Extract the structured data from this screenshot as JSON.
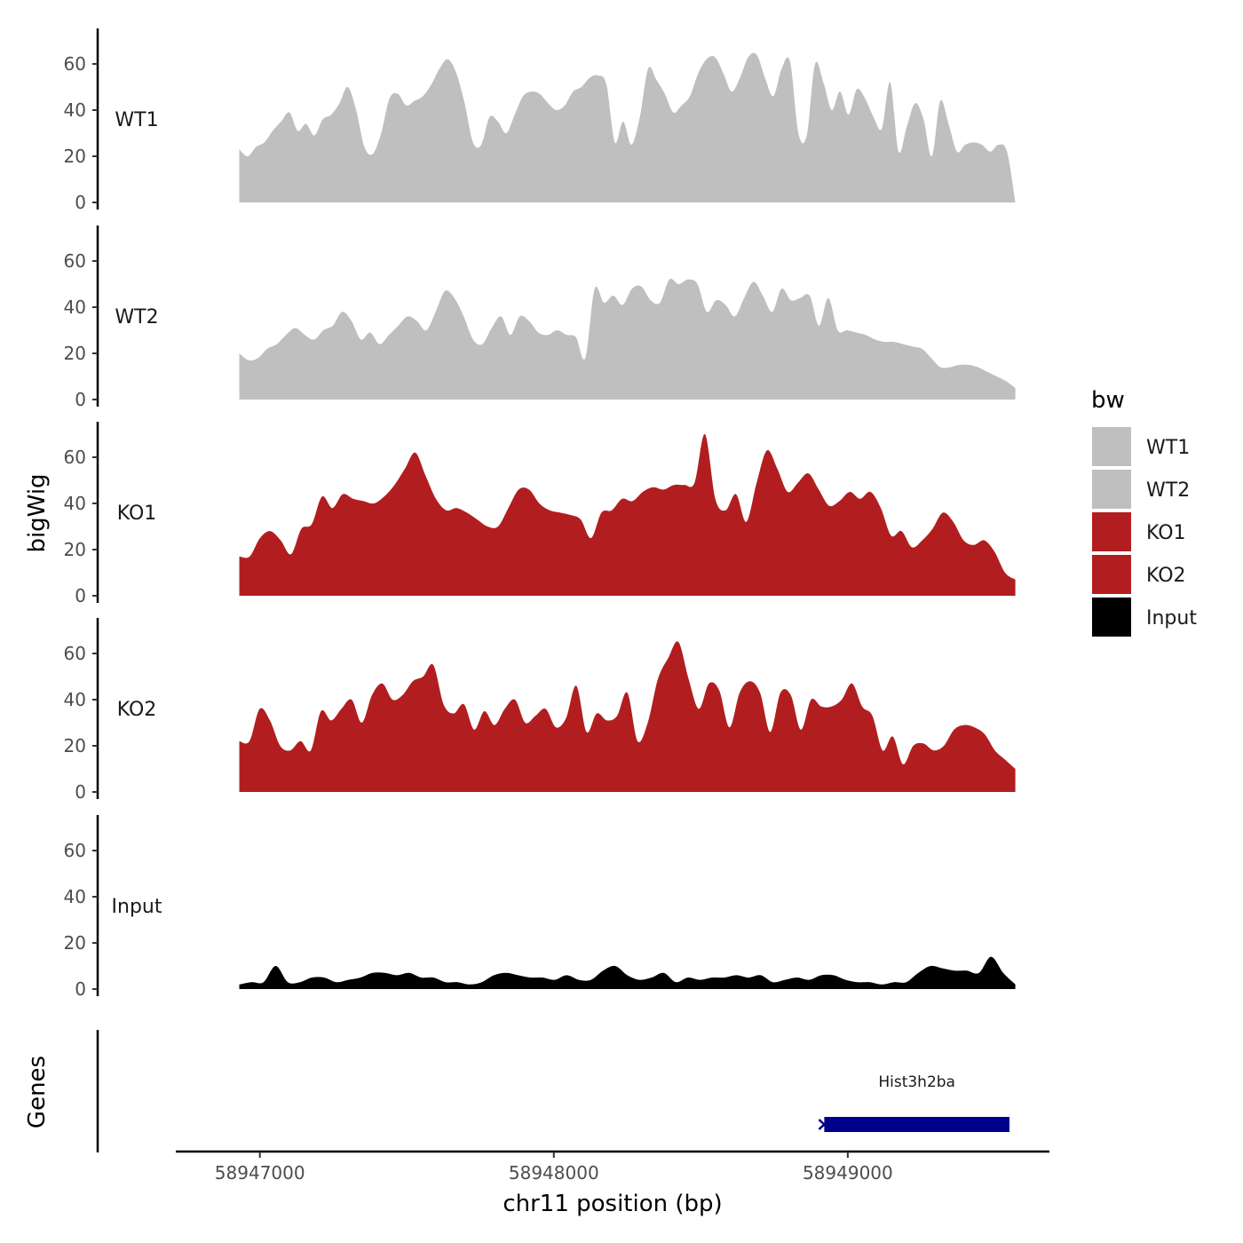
{
  "chart_data": {
    "type": "area",
    "ylabel": "bigWig",
    "xlabel": "chr11 position (bp)",
    "genes_track_label": "Genes",
    "x_range": [
      58946720,
      58949680
    ],
    "y_range": [
      0,
      75
    ],
    "y_ticks": [
      "0",
      "20",
      "40",
      "60"
    ],
    "x_ticks": [
      {
        "value": 58947000,
        "label": "58947000"
      },
      {
        "value": 58948000,
        "label": "58948000"
      },
      {
        "value": 58949000,
        "label": "58949000"
      }
    ],
    "x_start": 58946930,
    "x_end": 58949570,
    "legend": {
      "title": "bw",
      "entries": [
        {
          "label": "WT1",
          "color": "#bfbfbf"
        },
        {
          "label": "WT2",
          "color": "#bfbfbf"
        },
        {
          "label": "KO1",
          "color": "#b21e1f"
        },
        {
          "label": "KO2",
          "color": "#b21e1f"
        },
        {
          "label": "Input",
          "color": "#000000"
        }
      ]
    },
    "series": [
      {
        "name": "WT1",
        "color": "#bfbfbf",
        "values": [
          23,
          20,
          24,
          26,
          31,
          35,
          39,
          31,
          34,
          29,
          36,
          38,
          43,
          50,
          40,
          24,
          21,
          30,
          45,
          47,
          42,
          44,
          46,
          51,
          58,
          62,
          56,
          43,
          26,
          25,
          37,
          35,
          30,
          38,
          46,
          48,
          47,
          43,
          40,
          42,
          48,
          50,
          54,
          55,
          51,
          26,
          35,
          25,
          37,
          58,
          53,
          47,
          39,
          42,
          46,
          56,
          62,
          63,
          56,
          48,
          54,
          63,
          64,
          54,
          46,
          58,
          61,
          30,
          29,
          60,
          52,
          40,
          48,
          38,
          49,
          45,
          37,
          32,
          52,
          22,
          33,
          43,
          36,
          20,
          44,
          34,
          22,
          25,
          26,
          25,
          22,
          25,
          22,
          0
        ]
      },
      {
        "name": "WT2",
        "color": "#bfbfbf",
        "values": [
          20,
          17,
          18,
          22,
          24,
          28,
          31,
          28,
          26,
          30,
          32,
          38,
          34,
          26,
          29,
          24,
          28,
          32,
          36,
          34,
          30,
          38,
          47,
          44,
          36,
          26,
          24,
          31,
          36,
          28,
          36,
          34,
          29,
          28,
          30,
          28,
          27,
          18,
          48,
          42,
          45,
          41,
          48,
          49,
          43,
          42,
          52,
          50,
          52,
          50,
          38,
          43,
          41,
          36,
          44,
          51,
          45,
          38,
          48,
          43,
          44,
          45,
          32,
          44,
          30,
          30,
          29,
          28,
          26,
          25,
          25,
          24,
          23,
          22,
          18,
          14,
          14,
          15,
          15,
          14,
          12,
          10,
          8,
          5
        ]
      },
      {
        "name": "KO1",
        "color": "#b21e1f",
        "values": [
          17,
          17,
          25,
          28,
          24,
          18,
          29,
          31,
          43,
          38,
          44,
          42,
          41,
          40,
          43,
          48,
          55,
          62,
          52,
          42,
          37,
          38,
          36,
          33,
          30,
          30,
          38,
          46,
          46,
          40,
          37,
          36,
          35,
          33,
          25,
          36,
          37,
          42,
          41,
          45,
          47,
          46,
          48,
          48,
          49,
          70,
          42,
          37,
          44,
          32,
          49,
          63,
          55,
          45,
          49,
          53,
          46,
          39,
          41,
          45,
          42,
          45,
          38,
          26,
          28,
          21,
          24,
          29,
          36,
          32,
          24,
          22,
          24,
          19,
          10,
          7
        ]
      },
      {
        "name": "KO2",
        "color": "#b21e1f",
        "values": [
          22,
          22,
          36,
          31,
          20,
          18,
          22,
          18,
          35,
          31,
          36,
          40,
          30,
          42,
          47,
          40,
          42,
          48,
          50,
          55,
          38,
          34,
          38,
          27,
          35,
          29,
          36,
          40,
          30,
          33,
          36,
          28,
          32,
          46,
          26,
          34,
          31,
          33,
          43,
          22,
          30,
          49,
          58,
          65,
          49,
          36,
          47,
          44,
          28,
          43,
          48,
          43,
          26,
          43,
          42,
          27,
          40,
          37,
          37,
          40,
          47,
          37,
          33,
          18,
          24,
          12,
          20,
          21,
          18,
          20,
          27,
          29,
          28,
          25,
          18,
          14,
          10
        ]
      },
      {
        "name": "Input",
        "color": "#000000",
        "values": [
          2,
          3,
          3,
          10,
          3,
          3,
          5,
          5,
          3,
          4,
          5,
          7,
          7,
          6,
          7,
          5,
          5,
          3,
          3,
          2,
          3,
          6,
          7,
          6,
          5,
          5,
          4,
          6,
          4,
          4,
          8,
          10,
          6,
          4,
          5,
          7,
          3,
          5,
          4,
          5,
          5,
          6,
          5,
          6,
          3,
          4,
          5,
          4,
          6,
          6,
          4,
          3,
          3,
          2,
          3,
          3,
          7,
          10,
          9,
          8,
          8,
          7,
          14,
          7,
          2
        ]
      }
    ],
    "genes": [
      {
        "name": "Hist3h2ba",
        "start": 58948920,
        "end": 58949550,
        "strand": "-",
        "color": "#00008b"
      }
    ]
  }
}
